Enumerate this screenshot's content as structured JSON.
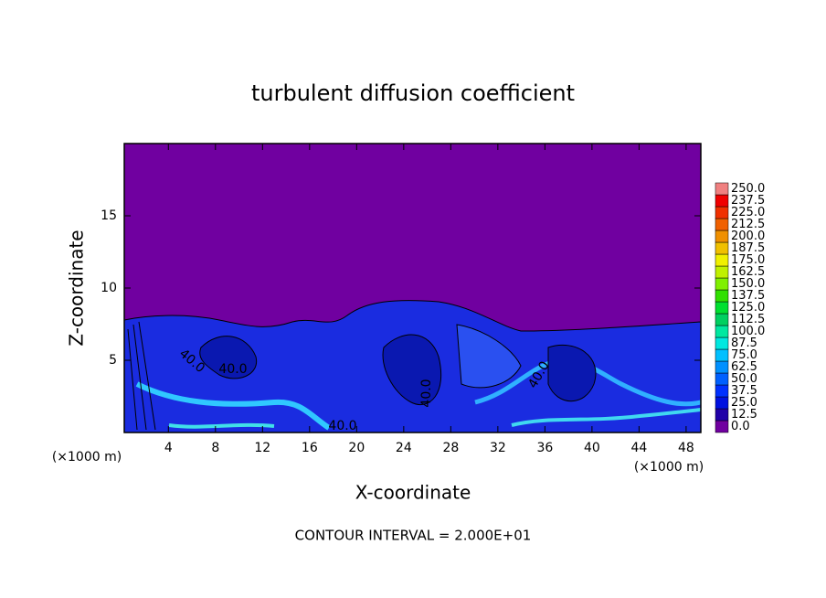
{
  "chart_data": {
    "type": "contour",
    "title": "turbulent diffusion coefficient",
    "x_label": "X-coordinate",
    "y_label": "Z-coordinate",
    "x_unit": "(×1000 m)",
    "y_unit": "(×1000 m)",
    "xlim": [
      0.25,
      49.25
    ],
    "xticks": [
      4,
      8,
      12,
      16,
      20,
      24,
      28,
      32,
      36,
      40,
      44,
      48
    ],
    "ylim": [
      0,
      20
    ],
    "yticks": [
      5,
      10,
      15
    ],
    "note": "CONTOUR INTERVAL = 2.000E+01",
    "contour_labels": [
      "40.0",
      "40.0",
      "40.0",
      "40.0",
      "40.0"
    ],
    "colorbar": {
      "levels": [
        {
          "value": 0,
          "label": "0.0"
        },
        {
          "value": 12.5,
          "label": "12.5"
        },
        {
          "value": 25,
          "label": "25.0"
        },
        {
          "value": 37.5,
          "label": "37.5"
        },
        {
          "value": 50,
          "label": "50.0"
        },
        {
          "value": 62.5,
          "label": "62.5"
        },
        {
          "value": 75,
          "label": "75.0"
        },
        {
          "value": 87.5,
          "label": "87.5"
        },
        {
          "value": 100,
          "label": "100.0"
        },
        {
          "value": 112.5,
          "label": "112.5"
        },
        {
          "value": 125,
          "label": "125.0"
        },
        {
          "value": 137.5,
          "label": "137.5"
        },
        {
          "value": 150,
          "label": "150.0"
        },
        {
          "value": 162.5,
          "label": "162.5"
        },
        {
          "value": 175,
          "label": "175.0"
        },
        {
          "value": 187.5,
          "label": "187.5"
        },
        {
          "value": 200,
          "label": "200.0"
        },
        {
          "value": 212.5,
          "label": "212.5"
        },
        {
          "value": 225,
          "label": "225.0"
        },
        {
          "value": 237.5,
          "label": "237.5"
        },
        {
          "value": 250,
          "label": "250.0"
        }
      ],
      "colors": [
        "#7000a0",
        "#2000a8",
        "#0010e0",
        "#0030ff",
        "#0060ff",
        "#0090ff",
        "#00c0ff",
        "#00e8e0",
        "#00e8a0",
        "#00d060",
        "#00e030",
        "#30e000",
        "#80f000",
        "#c0f000",
        "#f0f000",
        "#f0c000",
        "#f09000",
        "#f06000",
        "#f03000",
        "#f00000",
        "#f08080"
      ]
    }
  }
}
